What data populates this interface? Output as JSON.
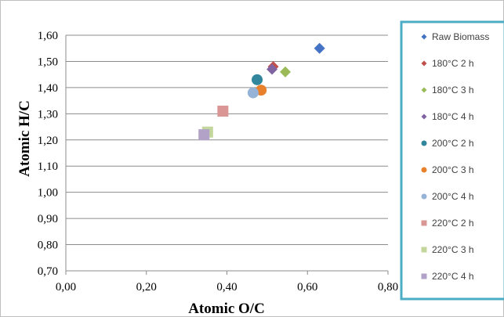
{
  "chart_data": {
    "type": "scatter",
    "xlabel": "Atomic O/C",
    "ylabel": "Atomic H/C",
    "xlim": [
      0.0,
      0.8
    ],
    "ylim": [
      0.7,
      1.6
    ],
    "x_ticks": [
      0.0,
      0.2,
      0.4,
      0.6,
      0.8
    ],
    "x_tick_labels": [
      "0,00",
      "0,20",
      "0,40",
      "0,60",
      "0,80"
    ],
    "y_ticks": [
      0.7,
      0.8,
      0.9,
      1.0,
      1.1,
      1.2,
      1.3,
      1.4,
      1.5,
      1.6
    ],
    "y_tick_labels": [
      "0,70",
      "0,80",
      "0,90",
      "1,00",
      "1,10",
      "1,20",
      "1,30",
      "1,40",
      "1,50",
      "1,60"
    ],
    "grid": "horizontal",
    "legend_position": "right",
    "legend_border_color": "#4bacc6",
    "series": [
      {
        "name": "Raw Biomass",
        "marker": "diamond",
        "color": "#4472c4",
        "x": 0.63,
        "y": 1.55
      },
      {
        "name": "180°C 2 h",
        "marker": "diamond",
        "color": "#c0504d",
        "x": 0.515,
        "y": 1.48
      },
      {
        "name": "180°C 3 h",
        "marker": "diamond",
        "color": "#9bbb59",
        "x": 0.545,
        "y": 1.46
      },
      {
        "name": "180°C 4 h",
        "marker": "diamond",
        "color": "#8064a2",
        "x": 0.512,
        "y": 1.47
      },
      {
        "name": "200°C 2 h",
        "marker": "circle",
        "color": "#31859c",
        "x": 0.475,
        "y": 1.43
      },
      {
        "name": "200°C 3 h",
        "marker": "circle",
        "color": "#e8802c",
        "x": 0.485,
        "y": 1.39
      },
      {
        "name": "200°C 4 h",
        "marker": "circle",
        "color": "#95b3d7",
        "x": 0.465,
        "y": 1.38
      },
      {
        "name": "220°C 2 h",
        "marker": "square",
        "color": "#d99694",
        "x": 0.39,
        "y": 1.31
      },
      {
        "name": "220°C 3 h",
        "marker": "square",
        "color": "#c3d69b",
        "x": 0.352,
        "y": 1.23
      },
      {
        "name": "220°C 4 h",
        "marker": "square",
        "color": "#b3a2c7",
        "x": 0.343,
        "y": 1.22
      }
    ]
  }
}
